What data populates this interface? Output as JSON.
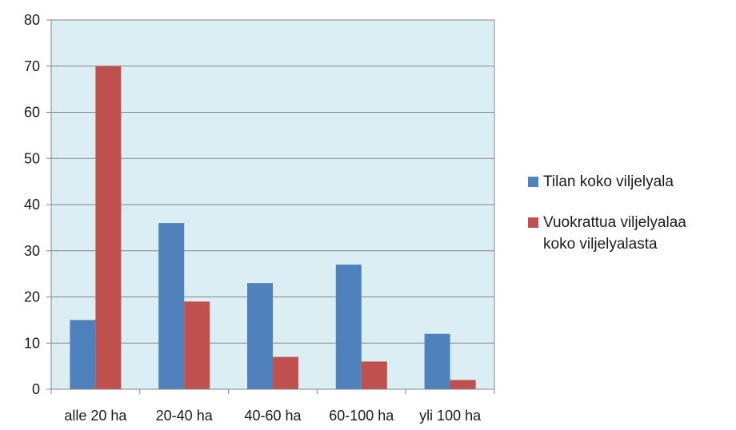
{
  "chart_data": {
    "type": "bar",
    "categories": [
      "alle 20 ha",
      "20-40 ha",
      "40-60 ha",
      "60-100 ha",
      "yli 100 ha"
    ],
    "series": [
      {
        "name": "Tilan koko viljelyala",
        "values": [
          15,
          36,
          23,
          27,
          12
        ],
        "color": "#4f81bd"
      },
      {
        "name": "Vuokrattua viljelyalaa koko viljelyalasta",
        "values": [
          70,
          19,
          7,
          6,
          2
        ],
        "color": "#c0504d"
      }
    ],
    "ylim": [
      0,
      80
    ],
    "yticks": [
      0,
      10,
      20,
      30,
      40,
      50,
      60,
      70,
      80
    ],
    "grid": true,
    "plot_background": "#dbeef4",
    "legend_position": "right",
    "title": "",
    "xlabel": "",
    "ylabel": ""
  }
}
